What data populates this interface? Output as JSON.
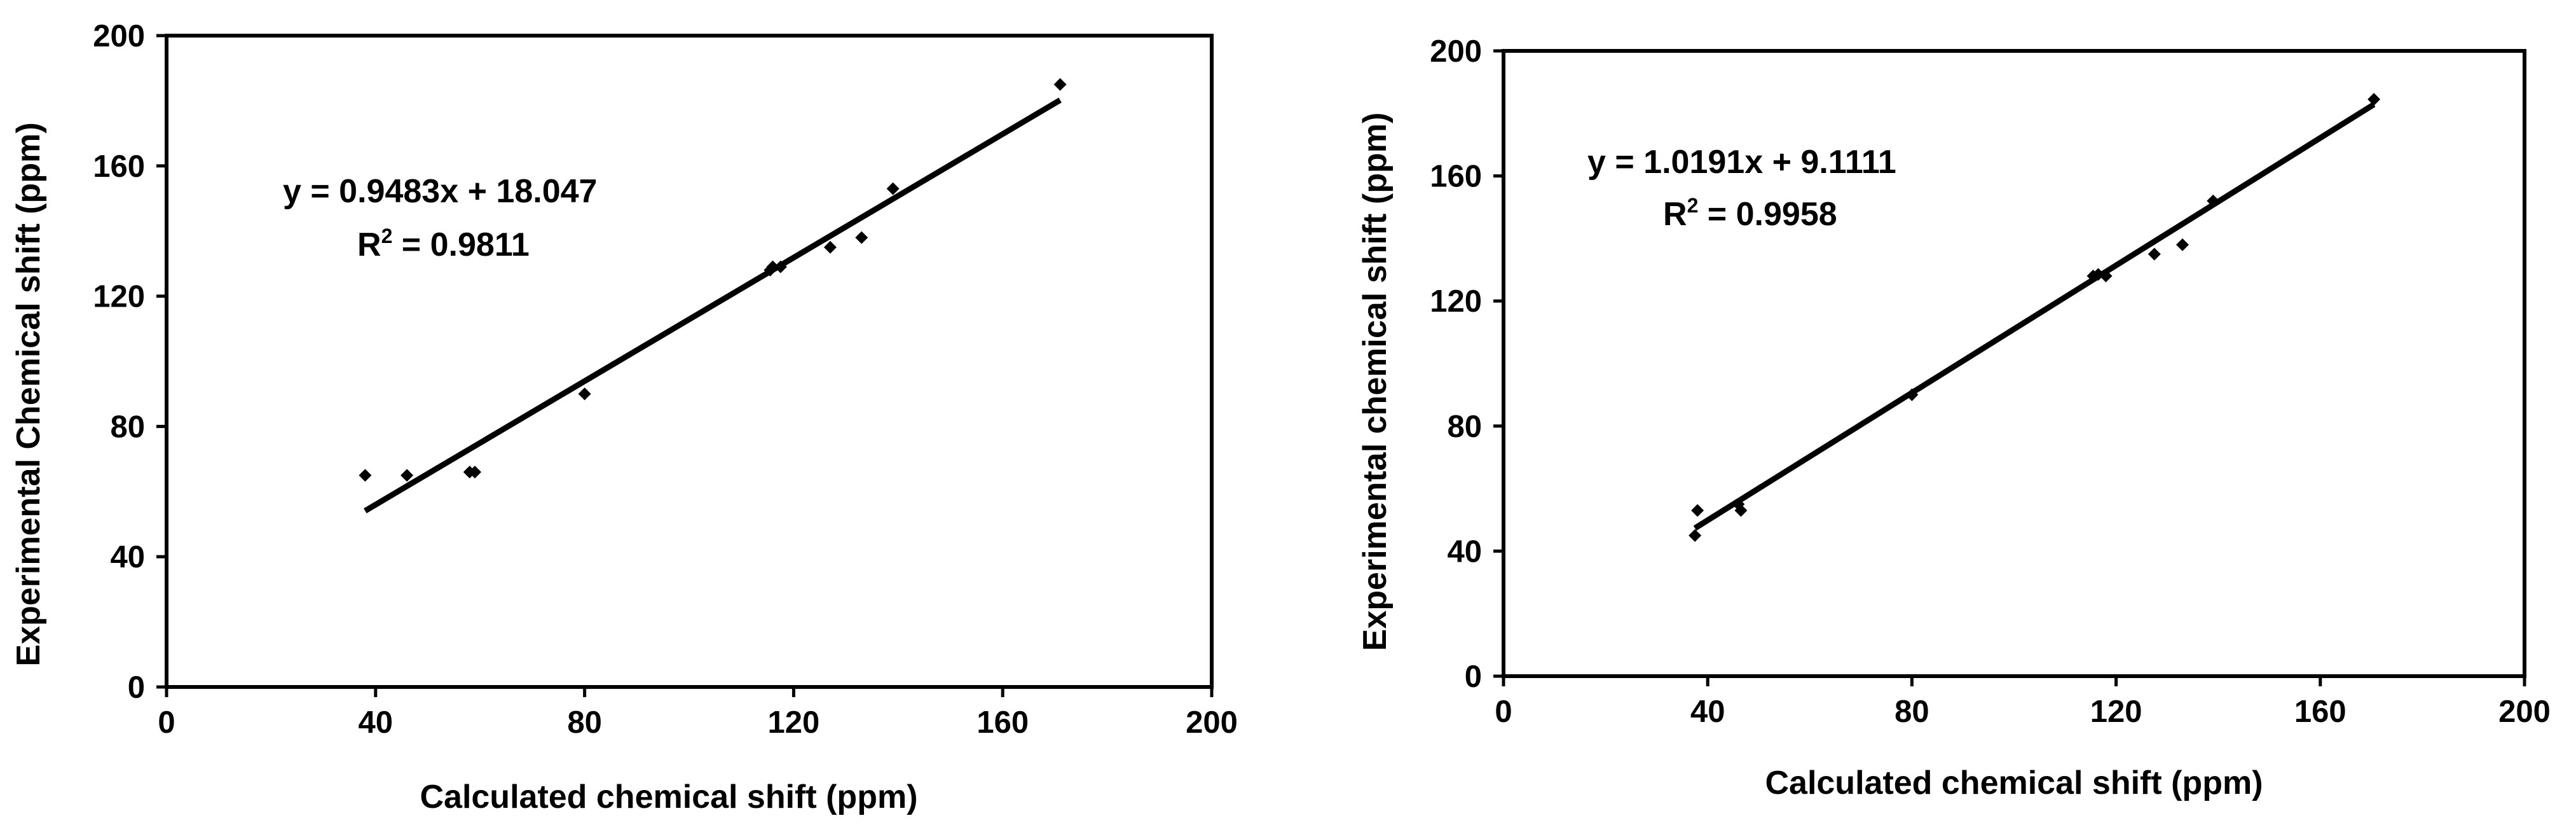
{
  "chart_data": [
    {
      "type": "scatter",
      "xlabel": "Calculated chemical shift (ppm)",
      "ylabel": "Experimental Chemical shift (ppm)",
      "xlim": [
        0,
        200
      ],
      "ylim": [
        0,
        200
      ],
      "xticks": [
        "0",
        "40",
        "80",
        "120",
        "160",
        "200"
      ],
      "yticks": [
        "0",
        "40",
        "80",
        "120",
        "160",
        "200"
      ],
      "grid": false,
      "points": [
        {
          "x": 38,
          "y": 65
        },
        {
          "x": 46,
          "y": 65
        },
        {
          "x": 58,
          "y": 66
        },
        {
          "x": 59,
          "y": 66
        },
        {
          "x": 80,
          "y": 90
        },
        {
          "x": 115.5,
          "y": 128
        },
        {
          "x": 116,
          "y": 129
        },
        {
          "x": 117.5,
          "y": 129
        },
        {
          "x": 127,
          "y": 135
        },
        {
          "x": 133,
          "y": 138
        },
        {
          "x": 139,
          "y": 153
        },
        {
          "x": 171,
          "y": 185
        }
      ],
      "trendline": {
        "slope": 0.9483,
        "intercept": 18.047,
        "x_range": [
          38,
          171
        ]
      },
      "equation": "y = 0.9483x + 18.047",
      "r2_prefix": "R",
      "r2_sup": "2",
      "r2_value": " = 0.9811"
    },
    {
      "type": "scatter",
      "xlabel": "Calculated chemical shift (ppm)",
      "ylabel": "Experimental chemical shift (ppm)",
      "xlim": [
        0,
        200
      ],
      "ylim": [
        0,
        200
      ],
      "xticks": [
        "0",
        "40",
        "80",
        "120",
        "160",
        "200"
      ],
      "yticks": [
        "0",
        "40",
        "80",
        "120",
        "160",
        "200"
      ],
      "grid": false,
      "points": [
        {
          "x": 37.5,
          "y": 45
        },
        {
          "x": 38,
          "y": 53
        },
        {
          "x": 46,
          "y": 55
        },
        {
          "x": 46.5,
          "y": 53
        },
        {
          "x": 80,
          "y": 90
        },
        {
          "x": 115.5,
          "y": 128
        },
        {
          "x": 116.5,
          "y": 128.5
        },
        {
          "x": 118,
          "y": 128
        },
        {
          "x": 127.5,
          "y": 135
        },
        {
          "x": 133,
          "y": 138
        },
        {
          "x": 139,
          "y": 152
        },
        {
          "x": 170.5,
          "y": 184.5
        }
      ],
      "trendline": {
        "slope": 1.0191,
        "intercept": 9.1111,
        "x_range": [
          37.5,
          170.5
        ]
      },
      "equation": "y = 1.0191x + 9.1111",
      "r2_prefix": "R",
      "r2_sup": "2",
      "r2_value": " = 0.9958"
    }
  ]
}
